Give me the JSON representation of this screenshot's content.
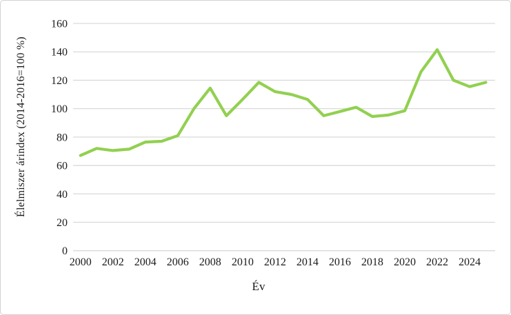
{
  "chart_data": {
    "type": "line",
    "title": "",
    "xlabel": "Év",
    "ylabel": "Élelmiszer árindex (2014-2016=100 %)",
    "x": [
      2000,
      2001,
      2002,
      2003,
      2004,
      2005,
      2006,
      2007,
      2008,
      2009,
      2010,
      2011,
      2012,
      2013,
      2014,
      2015,
      2016,
      2017,
      2018,
      2019,
      2020,
      2021,
      2022,
      2023,
      2024,
      2025
    ],
    "series": [
      {
        "values": [
          67,
          72,
          70.5,
          71.5,
          76.5,
          77,
          81,
          100,
          114.5,
          95,
          106.5,
          118.5,
          112,
          110,
          106.5,
          95,
          98,
          101,
          94.5,
          95.5,
          98.5,
          126,
          141.5,
          120,
          115.5,
          118.5
        ],
        "color": "#92d050"
      }
    ],
    "ylim": [
      0,
      160
    ],
    "yticks": [
      0,
      20,
      40,
      60,
      80,
      100,
      120,
      140,
      160
    ],
    "xticks": [
      2000,
      2002,
      2004,
      2006,
      2008,
      2010,
      2012,
      2014,
      2016,
      2018,
      2020,
      2022,
      2024
    ],
    "grid": "horizontal",
    "gridline_color": "#d9d9d9",
    "axis_text_color": "#1a1a1a",
    "background": "#ffffff",
    "border_color": "#d1d1d1",
    "legend": "none"
  }
}
